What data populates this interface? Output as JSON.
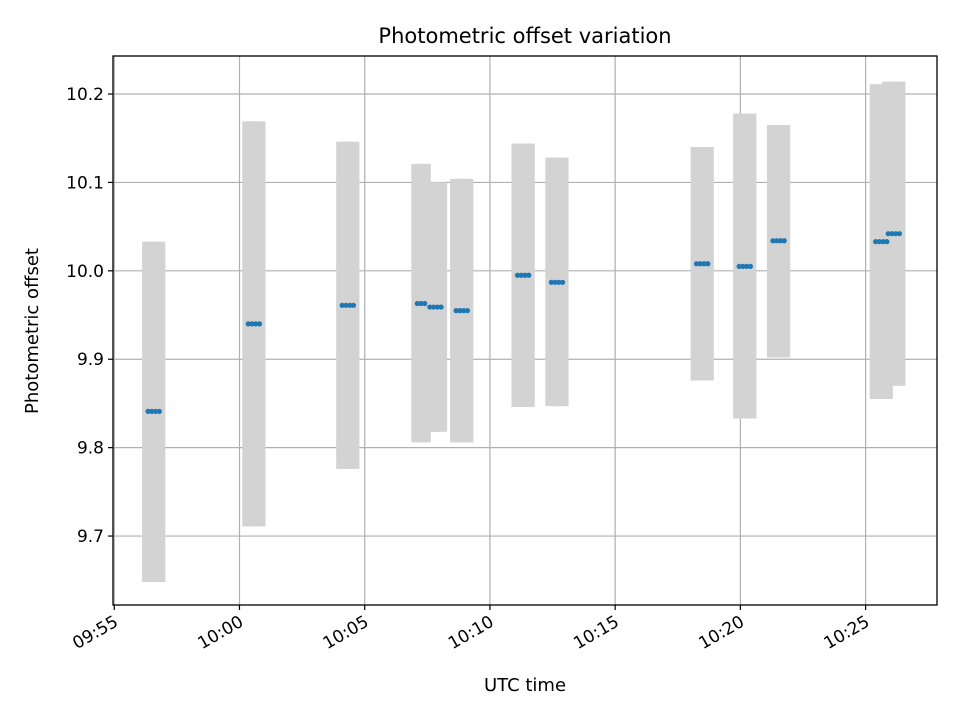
{
  "chart_data": {
    "type": "scatter",
    "title": "Photometric offset variation",
    "xlabel": "UTC time",
    "ylabel": "Photometric offset",
    "x_tick_labels": [
      "09:55",
      "10:00",
      "10:05",
      "10:10",
      "10:15",
      "10:20",
      "10:25"
    ],
    "y_tick_labels": [
      "9.7",
      "9.8",
      "9.9",
      "10.0",
      "10.1",
      "10.2"
    ],
    "xlim": [
      "09:54.95",
      "10:27.85"
    ],
    "ylim": [
      9.622,
      10.243
    ],
    "grid": true,
    "marker_color": "#1f77b4",
    "errorbar_color": "#d3d3d3",
    "points": [
      {
        "x": [
          "09:56.35",
          "09:56.50",
          "09:56.65",
          "09:56.80"
        ],
        "y": 9.841,
        "err_low": 9.648,
        "err_high": 10.033
      },
      {
        "x": [
          "10:00.35",
          "10:00.50",
          "10:00.65",
          "10:00.80"
        ],
        "y": 9.94,
        "err_low": 9.711,
        "err_high": 10.169
      },
      {
        "x": [
          "10:04.10",
          "10:04.25",
          "10:04.40",
          "10:04.55"
        ],
        "y": 9.961,
        "err_low": 9.776,
        "err_high": 10.146
      },
      {
        "x": [
          "10:07.10",
          "10:07.25",
          "10:07.40"
        ],
        "y": 9.963,
        "err_low": 9.806,
        "err_high": 10.121
      },
      {
        "x": [
          "10:07.60",
          "10:07.75",
          "10:07.90",
          "10:08.05"
        ],
        "y": 9.959,
        "err_low": 9.818,
        "err_high": 10.1
      },
      {
        "x": [
          "10:08.65",
          "10:08.80",
          "10:08.95",
          "10:09.10"
        ],
        "y": 9.955,
        "err_low": 9.806,
        "err_high": 10.104
      },
      {
        "x": [
          "10:11.10",
          "10:11.25",
          "10:11.40",
          "10:11.55"
        ],
        "y": 9.995,
        "err_low": 9.846,
        "err_high": 10.144
      },
      {
        "x": [
          "10:12.45",
          "10:12.60",
          "10:12.75",
          "10:12.90"
        ],
        "y": 9.987,
        "err_low": 9.847,
        "err_high": 10.128
      },
      {
        "x": [
          "10:18.25",
          "10:18.40",
          "10:18.55",
          "10:18.70"
        ],
        "y": 10.008,
        "err_low": 9.876,
        "err_high": 10.14
      },
      {
        "x": [
          "10:19.95",
          "10:20.10",
          "10:20.25",
          "10:20.40"
        ],
        "y": 10.005,
        "err_low": 9.833,
        "err_high": 10.178
      },
      {
        "x": [
          "10:21.30",
          "10:21.45",
          "10:21.60",
          "10:21.75"
        ],
        "y": 10.034,
        "err_low": 9.902,
        "err_high": 10.165
      },
      {
        "x": [
          "10:25.40",
          "10:25.55",
          "10:25.70",
          "10:25.85"
        ],
        "y": 10.033,
        "err_low": 9.855,
        "err_high": 10.211
      },
      {
        "x": [
          "10:25.90",
          "10:26.05",
          "10:26.20",
          "10:26.35"
        ],
        "y": 10.042,
        "err_low": 9.87,
        "err_high": 10.214
      }
    ]
  }
}
